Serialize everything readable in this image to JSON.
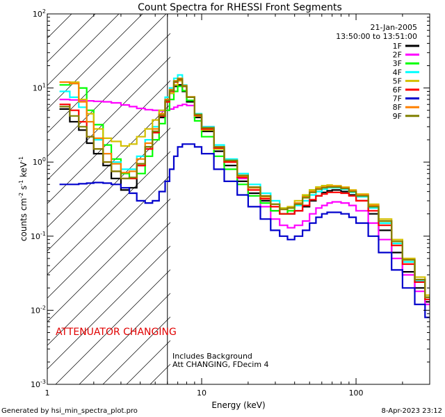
{
  "chart_data": {
    "type": "line",
    "title": "Count Spectra for RHESSI Front Segments",
    "xlabel": "Energy (keV)",
    "ylabel": {
      "base": "counts cm",
      "sup1": "-2",
      "mid1": " s",
      "sup2": "-1",
      "mid2": " keV",
      "sup3": "-1"
    },
    "x_scale": "log",
    "y_scale": "log",
    "xlim": [
      1,
      300
    ],
    "ylim": [
      0.001,
      100
    ],
    "x_ticks": [
      {
        "value": 1,
        "label": "1"
      },
      {
        "value": 10,
        "label": "10"
      },
      {
        "value": 100,
        "label": "100"
      }
    ],
    "y_ticks": [
      {
        "value": 0.001,
        "base": "10",
        "exp": "-3"
      },
      {
        "value": 0.01,
        "base": "10",
        "exp": "-2"
      },
      {
        "value": 0.1,
        "base": "10",
        "exp": "-1"
      },
      {
        "value": 1,
        "base": "10",
        "exp": "0"
      },
      {
        "value": 10,
        "base": "10",
        "exp": "1"
      },
      {
        "value": 100,
        "base": "10",
        "exp": "2"
      }
    ],
    "date": "21-Jan-2005",
    "time_range": "13:50:00 to 13:51:00",
    "attenuator_label": "ATTENUATOR CHANGING",
    "attenuator_boundary_kev": 6,
    "notes": [
      "Includes Background",
      "Att CHANGING, FDecim 4"
    ],
    "series": [
      {
        "name": "1F",
        "color": "#000000",
        "x": [
          1.2,
          1.4,
          1.6,
          1.8,
          2.0,
          2.3,
          2.6,
          3.0,
          3.4,
          3.8,
          4.3,
          4.8,
          5.3,
          5.8,
          6.2,
          6.6,
          7.0,
          7.5,
          8.0,
          9,
          10,
          12,
          14,
          17,
          20,
          24,
          28,
          32,
          36,
          40,
          45,
          50,
          55,
          60,
          65,
          70,
          80,
          90,
          100,
          120,
          140,
          170,
          200,
          240,
          280
        ],
        "values": [
          5.2,
          3.5,
          2.7,
          1.8,
          1.3,
          0.9,
          0.6,
          0.42,
          0.45,
          0.9,
          1.6,
          2.5,
          4,
          6.5,
          8.5,
          10.5,
          11,
          9,
          6.5,
          4,
          2.6,
          1.4,
          0.9,
          0.55,
          0.38,
          0.3,
          0.22,
          0.2,
          0.2,
          0.22,
          0.25,
          0.3,
          0.35,
          0.39,
          0.41,
          0.42,
          0.4,
          0.36,
          0.3,
          0.2,
          0.12,
          0.06,
          0.033,
          0.02,
          0.013
        ]
      },
      {
        "name": "2F",
        "color": "#ff00ff",
        "x": [
          1.2,
          1.4,
          1.6,
          1.8,
          2.0,
          2.3,
          2.6,
          3.0,
          3.4,
          3.8,
          4.3,
          4.8,
          5.3,
          5.8,
          6.2,
          6.6,
          7.0,
          7.5,
          8.0,
          9,
          10,
          12,
          14,
          17,
          20,
          24,
          28,
          32,
          36,
          40,
          45,
          50,
          55,
          60,
          65,
          70,
          80,
          90,
          100,
          120,
          140,
          170,
          200,
          240,
          280
        ],
        "values": [
          7,
          6.9,
          6.8,
          6.7,
          6.6,
          6.5,
          6.3,
          5.9,
          5.6,
          5.3,
          5.1,
          5.0,
          4.9,
          5.0,
          5.2,
          5.5,
          5.8,
          6.0,
          5.8,
          4.2,
          3.0,
          1.6,
          1.0,
          0.6,
          0.35,
          0.25,
          0.17,
          0.14,
          0.13,
          0.14,
          0.16,
          0.2,
          0.24,
          0.26,
          0.28,
          0.29,
          0.28,
          0.26,
          0.22,
          0.15,
          0.09,
          0.05,
          0.03,
          0.018,
          0.012
        ]
      },
      {
        "name": "3F",
        "color": "#00ff00",
        "x": [
          1.2,
          1.4,
          1.6,
          1.8,
          2.0,
          2.3,
          2.6,
          3.0,
          3.4,
          3.8,
          4.3,
          4.8,
          5.3,
          5.8,
          6.2,
          6.6,
          7.0,
          7.5,
          8.0,
          9,
          10,
          12,
          14,
          17,
          20,
          24,
          28,
          32,
          36,
          40,
          45,
          50,
          55,
          60,
          65,
          70,
          80,
          90,
          100,
          120,
          140,
          170,
          200,
          240,
          280
        ],
        "values": [
          11,
          11.5,
          10,
          5,
          3.2,
          1.7,
          1.1,
          0.7,
          0.6,
          0.7,
          1.2,
          2,
          3.3,
          5,
          7,
          9,
          10.5,
          9.2,
          6.8,
          3.6,
          2.2,
          1.2,
          0.8,
          0.5,
          0.35,
          0.28,
          0.22,
          0.2,
          0.22,
          0.28,
          0.35,
          0.42,
          0.46,
          0.48,
          0.47,
          0.46,
          0.44,
          0.4,
          0.35,
          0.25,
          0.15,
          0.08,
          0.045,
          0.025,
          0.015
        ]
      },
      {
        "name": "4F",
        "color": "#00ffff",
        "x": [
          1.2,
          1.4,
          1.6,
          1.8,
          2.0,
          2.3,
          2.6,
          3.0,
          3.4,
          3.8,
          4.3,
          4.8,
          5.3,
          5.8,
          6.2,
          6.6,
          7.0,
          7.5,
          8.0,
          9,
          10,
          12,
          14,
          17,
          20,
          24,
          28,
          32,
          36,
          40,
          45,
          50,
          55,
          60,
          65,
          70,
          80,
          90,
          100,
          120,
          140,
          170,
          200,
          240,
          280
        ],
        "values": [
          9,
          7.5,
          5.5,
          3.5,
          2,
          1.3,
          1.0,
          0.8,
          0.8,
          1.2,
          2,
          3,
          5,
          7.5,
          10,
          13.5,
          15,
          11,
          7.5,
          4.5,
          3,
          1.7,
          1.1,
          0.7,
          0.5,
          0.38,
          0.3,
          0.24,
          0.24,
          0.26,
          0.3,
          0.36,
          0.4,
          0.43,
          0.45,
          0.45,
          0.43,
          0.39,
          0.34,
          0.24,
          0.15,
          0.08,
          0.045,
          0.025,
          0.014
        ]
      },
      {
        "name": "5F",
        "color": "#d4c000",
        "x": [
          1.2,
          1.4,
          1.6,
          1.8,
          2.0,
          2.3,
          2.6,
          3.0,
          3.4,
          3.8,
          4.3,
          4.8,
          5.3,
          5.8,
          6.2,
          6.6,
          7.0,
          7.5,
          8.0,
          9,
          10,
          12,
          14,
          17,
          20,
          24,
          28,
          32,
          36,
          40,
          45,
          50,
          55,
          60,
          65,
          70,
          80,
          90,
          100,
          120,
          140,
          170,
          200,
          240,
          280
        ],
        "values": [
          12,
          12,
          7,
          4.5,
          2.8,
          2.1,
          1.9,
          1.65,
          1.75,
          2.2,
          2.8,
          3.7,
          5,
          6.5,
          8.5,
          11,
          12.5,
          10.5,
          7.5,
          4.2,
          2.7,
          1.5,
          1.0,
          0.65,
          0.45,
          0.34,
          0.27,
          0.24,
          0.25,
          0.3,
          0.36,
          0.42,
          0.46,
          0.48,
          0.49,
          0.48,
          0.46,
          0.42,
          0.37,
          0.27,
          0.17,
          0.09,
          0.05,
          0.028,
          0.016
        ]
      },
      {
        "name": "6F",
        "color": "#ff0000",
        "x": [
          1.2,
          1.4,
          1.6,
          1.8,
          2.0,
          2.3,
          2.6,
          3.0,
          3.4,
          3.8,
          4.3,
          4.8,
          5.3,
          5.8,
          6.2,
          6.6,
          7.0,
          7.5,
          8.0,
          9,
          10,
          12,
          14,
          17,
          20,
          24,
          28,
          32,
          36,
          40,
          45,
          50,
          55,
          60,
          65,
          70,
          80,
          90,
          100,
          120,
          140,
          170,
          200,
          240,
          280
        ],
        "values": [
          6,
          5,
          3.5,
          2.2,
          1.5,
          1.0,
          0.75,
          0.6,
          0.6,
          0.9,
          1.5,
          2.5,
          4.2,
          6.5,
          9,
          12,
          13,
          10.5,
          7.5,
          4.3,
          2.8,
          1.55,
          1.0,
          0.62,
          0.42,
          0.32,
          0.25,
          0.2,
          0.2,
          0.22,
          0.26,
          0.31,
          0.35,
          0.37,
          0.39,
          0.39,
          0.38,
          0.35,
          0.3,
          0.22,
          0.14,
          0.075,
          0.042,
          0.024,
          0.014
        ]
      },
      {
        "name": "7F",
        "color": "#0000cc",
        "x": [
          1.2,
          1.4,
          1.6,
          1.8,
          2.0,
          2.3,
          2.6,
          3.0,
          3.4,
          3.8,
          4.3,
          4.8,
          5.3,
          5.8,
          6.2,
          6.6,
          7.0,
          7.5,
          8.0,
          9,
          10,
          12,
          14,
          17,
          20,
          24,
          28,
          32,
          36,
          40,
          45,
          50,
          55,
          60,
          65,
          70,
          80,
          90,
          100,
          120,
          140,
          170,
          200,
          240,
          280
        ],
        "values": [
          0.5,
          0.5,
          0.51,
          0.52,
          0.53,
          0.52,
          0.5,
          0.45,
          0.38,
          0.3,
          0.28,
          0.3,
          0.4,
          0.55,
          0.8,
          1.2,
          1.6,
          1.75,
          1.75,
          1.6,
          1.3,
          0.8,
          0.55,
          0.36,
          0.25,
          0.17,
          0.12,
          0.1,
          0.09,
          0.1,
          0.12,
          0.15,
          0.18,
          0.2,
          0.21,
          0.21,
          0.2,
          0.18,
          0.15,
          0.1,
          0.06,
          0.035,
          0.02,
          0.012,
          0.008
        ]
      },
      {
        "name": "8F",
        "color": "#ff8000",
        "x": [
          1.2,
          1.4,
          1.6,
          1.8,
          2.0,
          2.3,
          2.6,
          3.0,
          3.4,
          3.8,
          4.3,
          4.8,
          5.3,
          5.8,
          6.2,
          6.6,
          7.0,
          7.5,
          8.0,
          9,
          10,
          12,
          14,
          17,
          20,
          24,
          28,
          32,
          36,
          40,
          45,
          50,
          55,
          60,
          65,
          70,
          80,
          90,
          100,
          120,
          140,
          170,
          200,
          240,
          280
        ],
        "values": [
          12,
          11.5,
          6.5,
          3.5,
          2.1,
          1.3,
          0.95,
          0.72,
          0.75,
          1.1,
          1.8,
          2.8,
          4.5,
          7,
          9.5,
          12.5,
          13.5,
          10.8,
          7.6,
          4.4,
          2.9,
          1.6,
          1.05,
          0.65,
          0.45,
          0.34,
          0.27,
          0.23,
          0.24,
          0.28,
          0.34,
          0.4,
          0.44,
          0.46,
          0.47,
          0.47,
          0.45,
          0.41,
          0.36,
          0.26,
          0.16,
          0.085,
          0.048,
          0.026,
          0.015
        ]
      },
      {
        "name": "9F",
        "color": "#808000",
        "x": [
          1.2,
          1.4,
          1.6,
          1.8,
          2.0,
          2.3,
          2.6,
          3.0,
          3.4,
          3.8,
          4.3,
          4.8,
          5.3,
          5.8,
          6.2,
          6.6,
          7.0,
          7.5,
          8.0,
          9,
          10,
          12,
          14,
          17,
          20,
          24,
          28,
          32,
          36,
          40,
          45,
          50,
          55,
          60,
          65,
          70,
          80,
          90,
          100,
          120,
          140,
          170,
          200,
          240,
          280
        ],
        "values": [
          5.6,
          4.2,
          3,
          2.2,
          1.5,
          1.0,
          0.75,
          0.6,
          0.62,
          0.95,
          1.6,
          2.6,
          4.3,
          6.8,
          9.2,
          12.2,
          13.2,
          10.6,
          7.5,
          4.4,
          2.9,
          1.6,
          1.05,
          0.66,
          0.46,
          0.35,
          0.27,
          0.23,
          0.24,
          0.27,
          0.33,
          0.39,
          0.43,
          0.45,
          0.46,
          0.46,
          0.44,
          0.4,
          0.35,
          0.25,
          0.16,
          0.085,
          0.048,
          0.026,
          0.015
        ]
      }
    ]
  },
  "footer": {
    "generated_by": "Generated by hsi_min_spectra_plot.pro",
    "generated_at": "8-Apr-2023 23:12"
  }
}
